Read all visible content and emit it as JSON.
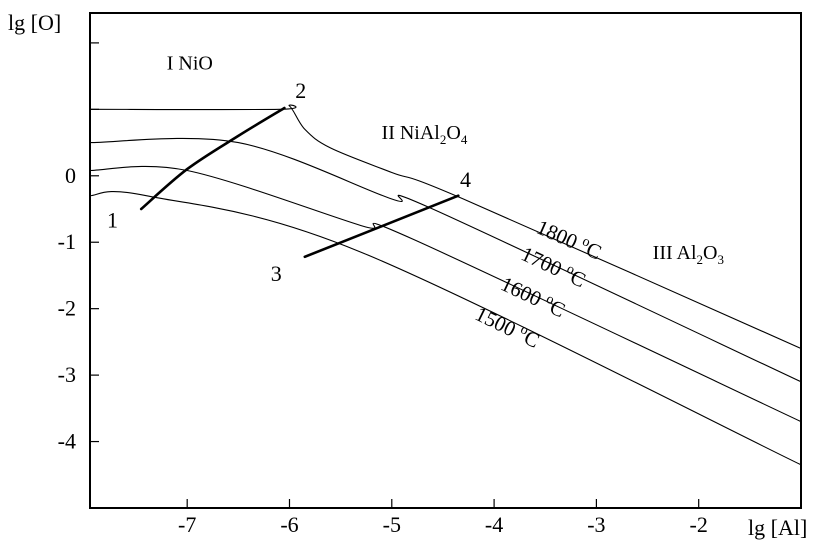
{
  "chart_data": {
    "type": "line",
    "title": "",
    "xlabel": "lg [Al]",
    "ylabel": "lg [O]",
    "xlim": [
      -7.95,
      -1.0
    ],
    "ylim": [
      -5.0,
      2.45
    ],
    "grid": false,
    "legend": "none",
    "x_ticks": [
      {
        "value": -7,
        "label": "-7"
      },
      {
        "value": -6,
        "label": "-6"
      },
      {
        "value": -5,
        "label": "-5"
      },
      {
        "value": -4,
        "label": "-4"
      },
      {
        "value": -3,
        "label": "-3"
      },
      {
        "value": -2,
        "label": "-2"
      }
    ],
    "y_ticks": [
      {
        "value": 0,
        "label": "0"
      },
      {
        "value": -1,
        "label": "-1"
      },
      {
        "value": -2,
        "label": "-2"
      },
      {
        "value": -3,
        "label": "-3"
      },
      {
        "value": -4,
        "label": "-4"
      }
    ],
    "y_minor_ticks": [
      1,
      2
    ],
    "series": [
      {
        "name": "1800 °C",
        "label_main": "1800 ",
        "label_sup": "o",
        "label_unit": "C",
        "label_at": [
          -3.6,
          -0.85
        ],
        "x": [
          -7.95,
          -6.1,
          -6.0,
          -5.85,
          -5.6,
          -5.0,
          -4.3,
          -1.0
        ],
        "y": [
          1.0,
          1.0,
          1.05,
          0.7,
          0.42,
          0.05,
          -0.35,
          -2.6
        ]
      },
      {
        "name": "1700 °C",
        "label_main": "1700 ",
        "label_sup": "o",
        "label_unit": "C",
        "label_at": [
          -3.75,
          -1.25
        ],
        "x": [
          -7.95,
          -6.5,
          -5.0,
          -4.6,
          -1.0
        ],
        "y": [
          0.5,
          0.5,
          -0.35,
          -0.5,
          -3.1
        ]
      },
      {
        "name": "1600 °C",
        "label_main": "1600 ",
        "label_sup": "o",
        "label_unit": "C",
        "label_at": [
          -3.95,
          -1.7
        ],
        "x": [
          -7.95,
          -7.0,
          -5.3,
          -4.8,
          -1.0
        ],
        "y": [
          0.08,
          0.08,
          -0.75,
          -0.95,
          -3.7
        ]
      },
      {
        "name": "1500 °C",
        "label_main": "1500 ",
        "label_sup": "o",
        "label_unit": "C",
        "label_at": [
          -4.2,
          -2.15
        ],
        "x": [
          -7.95,
          -7.4,
          -5.3,
          -1.0
        ],
        "y": [
          -0.3,
          -0.3,
          -1.15,
          -4.35
        ]
      }
    ],
    "boundaries": [
      {
        "x": [
          -7.45,
          -7.0,
          -6.5,
          -6.05
        ],
        "y": [
          -0.5,
          0.1,
          0.6,
          1.02
        ]
      },
      {
        "x": [
          -5.85,
          -4.35
        ],
        "y": [
          -1.22,
          -0.3
        ]
      }
    ],
    "point_labels": [
      {
        "text": "1",
        "at": [
          -7.73,
          -0.78
        ]
      },
      {
        "text": "2",
        "at": [
          -5.89,
          1.17
        ]
      },
      {
        "text": "3",
        "at": [
          -6.13,
          -1.58
        ]
      },
      {
        "text": "4",
        "at": [
          -4.28,
          -0.17
        ]
      }
    ],
    "regions": [
      {
        "label": "I NiO",
        "main": "I NiO",
        "sub": "",
        "rest": [],
        "at": [
          -7.2,
          1.6
        ]
      },
      {
        "label": "II NiAl2O4",
        "main": "II NiAl",
        "sub": "2",
        "rest": [
          {
            "t": "O",
            "sub": false
          },
          {
            "t": "4",
            "sub": true
          }
        ],
        "at": [
          -5.1,
          0.55
        ]
      },
      {
        "label": "III Al2O3",
        "main": "III Al",
        "sub": "2",
        "rest": [
          {
            "t": "O",
            "sub": false
          },
          {
            "t": "3",
            "sub": true
          }
        ],
        "at": [
          -2.45,
          -1.25
        ]
      }
    ]
  }
}
